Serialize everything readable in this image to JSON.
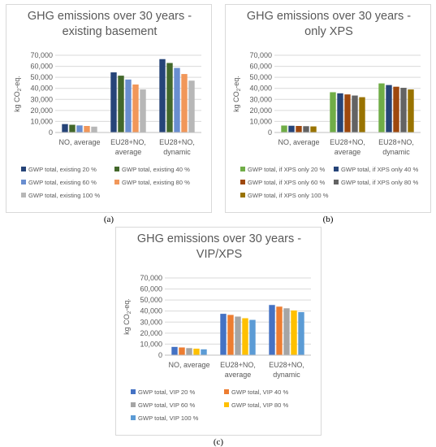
{
  "captions": [
    "(a)",
    "(b)",
    "(c)"
  ],
  "chart_data": [
    {
      "type": "bar",
      "title_lines": [
        "GHG emissions over 30 years -",
        "existing basement"
      ],
      "ylabel": "kg CO₂-eq.",
      "ylim": [
        0,
        70000
      ],
      "yticks": [
        "0",
        "10,000",
        "20,000",
        "30,000",
        "40,000",
        "50,000",
        "60,000",
        "70,000"
      ],
      "grid": true,
      "legend_position": "bottom",
      "categories": [
        [
          "NO, average"
        ],
        [
          "EU28+NO,",
          "average"
        ],
        [
          "EU28+NO,",
          "dynamic"
        ]
      ],
      "series": [
        {
          "name": "GWP total, existing 20 %",
          "color": "#264478",
          "values": [
            7600,
            54500,
            66500
          ]
        },
        {
          "name": "GWP total, existing 40 %",
          "color": "#43682b",
          "values": [
            7000,
            51500,
            63000
          ]
        },
        {
          "name": "GWP total, existing 60 %",
          "color": "#698ed0",
          "values": [
            6400,
            48000,
            58500
          ]
        },
        {
          "name": "GWP total, existing 80 %",
          "color": "#f1975a",
          "values": [
            5900,
            43500,
            53000
          ]
        },
        {
          "name": "GWP total, existing 100 %",
          "color": "#b7b7b7",
          "values": [
            5300,
            39000,
            47000
          ]
        }
      ]
    },
    {
      "type": "bar",
      "title_lines": [
        "GHG emissions over 30 years -",
        "only XPS"
      ],
      "ylabel": "kg CO₂-eq.",
      "ylim": [
        0,
        70000
      ],
      "yticks": [
        "0",
        "10,000",
        "20,000",
        "30,000",
        "40,000",
        "50,000",
        "60,000",
        "70,000"
      ],
      "grid": true,
      "legend_position": "bottom",
      "categories": [
        [
          "NO, average"
        ],
        [
          "EU28+NO,",
          "average"
        ],
        [
          "EU28+NO,",
          "dynamic"
        ]
      ],
      "series": [
        {
          "name": "GWP total, if XPS only 20 %",
          "color": "#70ad47",
          "values": [
            6300,
            36500,
            44500
          ]
        },
        {
          "name": "GWP total, if XPS only 40 %",
          "color": "#264478",
          "values": [
            6100,
            35500,
            43000
          ]
        },
        {
          "name": "GWP total, if XPS only 60 %",
          "color": "#9e480e",
          "values": [
            5900,
            34500,
            41500
          ]
        },
        {
          "name": "GWP total, if XPS only 80 %",
          "color": "#636363",
          "values": [
            5700,
            33500,
            40500
          ]
        },
        {
          "name": "GWP total, if XPS only 100 %",
          "color": "#997300",
          "values": [
            5500,
            32000,
            39000
          ]
        }
      ]
    },
    {
      "type": "bar",
      "title_lines": [
        "GHG emissions over 30 years -",
        "VIP/XPS"
      ],
      "ylabel": "kg CO₂-eq.",
      "ylim": [
        0,
        70000
      ],
      "yticks": [
        "0",
        "10,000",
        "20,000",
        "30,000",
        "40,000",
        "50,000",
        "60,000",
        "70,000"
      ],
      "grid": true,
      "legend_position": "bottom",
      "categories": [
        [
          "NO, average"
        ],
        [
          "EU28+NO,",
          "average"
        ],
        [
          "EU28+NO,",
          "dynamic"
        ]
      ],
      "series": [
        {
          "name": "GWP total, VIP 20 %",
          "color": "#4472c4",
          "values": [
            7500,
            37500,
            45500
          ]
        },
        {
          "name": "GWP total, VIP 40 %",
          "color": "#ed7d31",
          "values": [
            7000,
            36500,
            44000
          ]
        },
        {
          "name": "GWP total, VIP 60 %",
          "color": "#a5a5a5",
          "values": [
            6400,
            35000,
            42500
          ]
        },
        {
          "name": "GWP total, VIP 80 %",
          "color": "#ffc000",
          "values": [
            5900,
            33500,
            40500
          ]
        },
        {
          "name": "GWP total, VIP 100 %",
          "color": "#5b9bd5",
          "values": [
            5300,
            32000,
            39000
          ]
        }
      ]
    }
  ]
}
